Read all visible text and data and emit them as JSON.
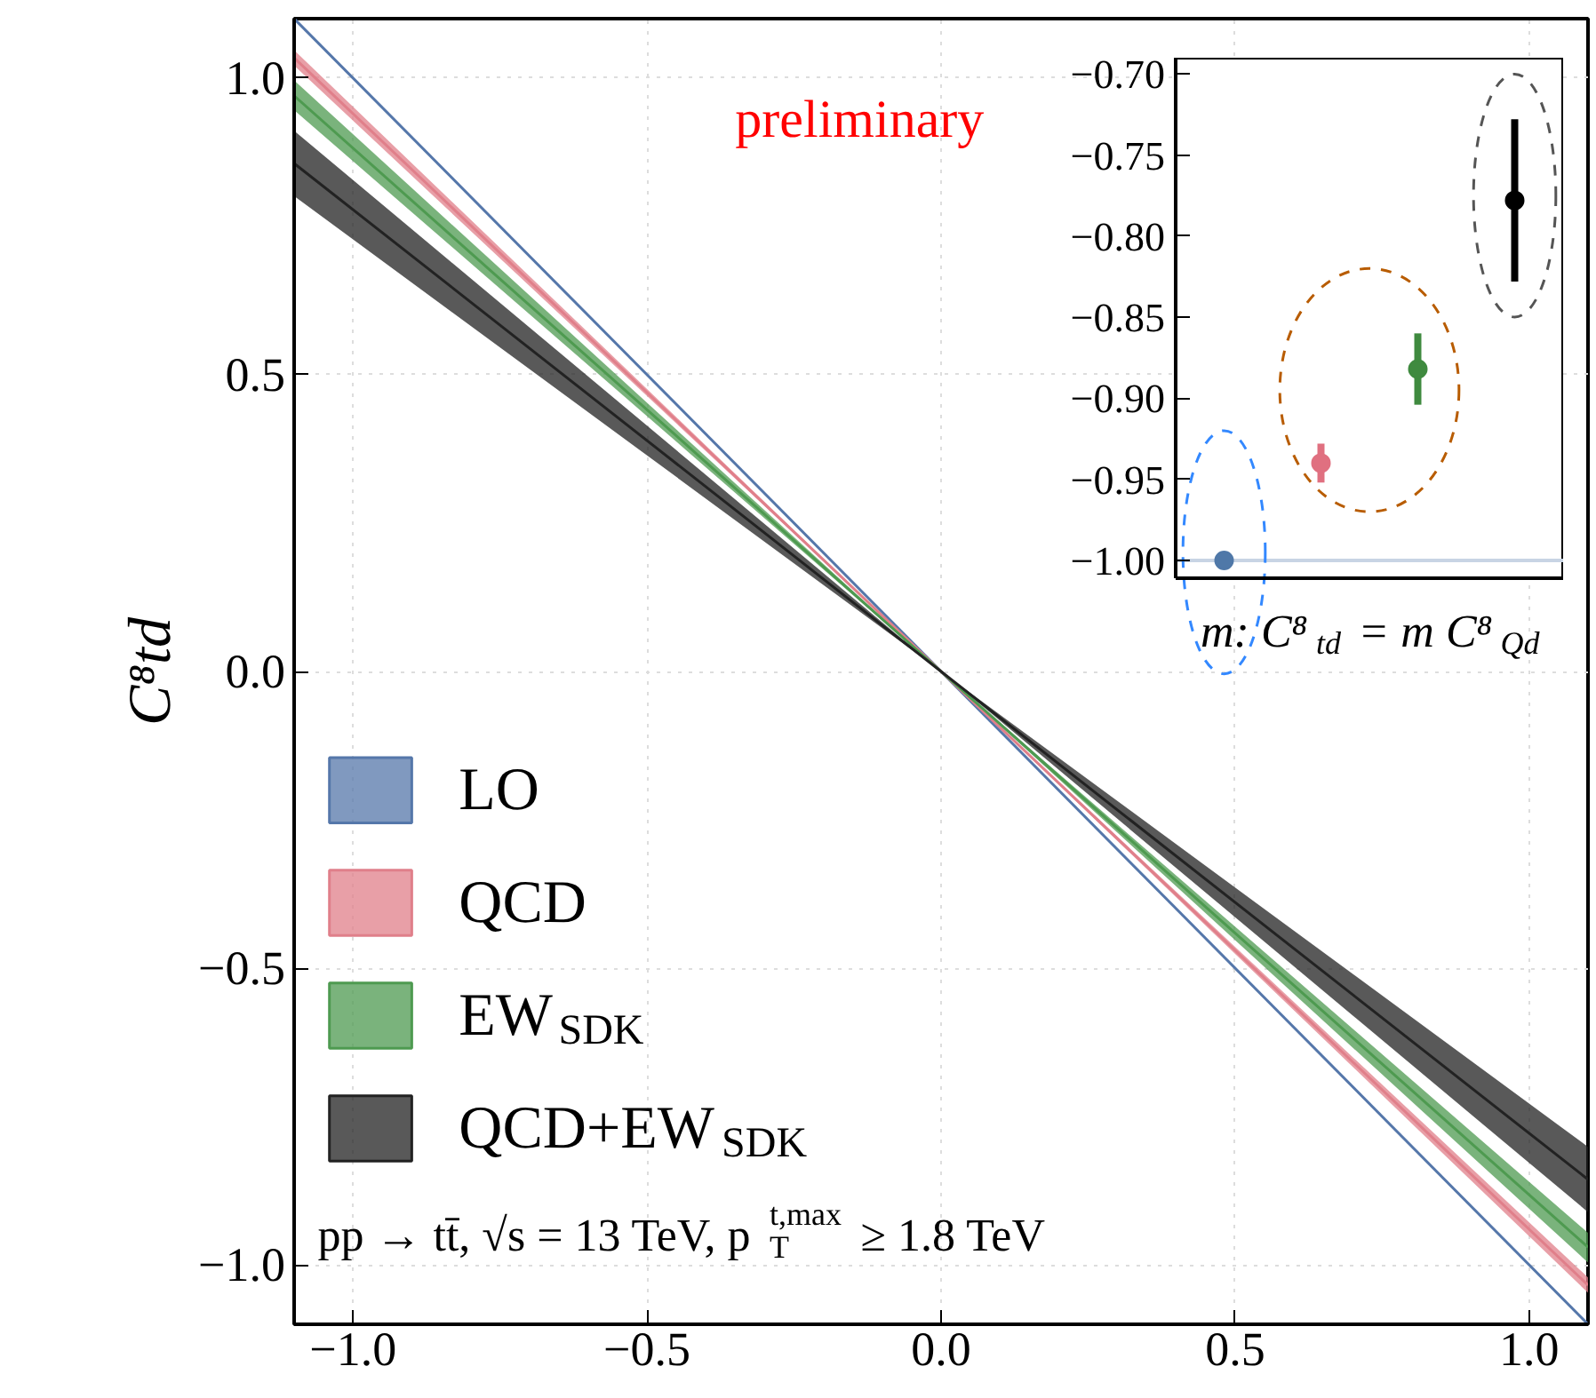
{
  "chart_data": [
    {
      "type": "line",
      "x": [
        -1.1,
        0,
        1.1
      ],
      "ylabel": "C⁸td",
      "series": [
        {
          "name": "LO",
          "color": "#5577aa",
          "values": [
            1.1,
            0,
            -1.1
          ]
        },
        {
          "name": "QCD",
          "color": "#e07f8a",
          "values": [
            1.034,
            0,
            -1.034
          ],
          "lower": [
            1.021,
            0,
            -1.047
          ],
          "upper": [
            1.047,
            0,
            -1.021
          ]
        },
        {
          "name": "EW$_{SDK}$",
          "color": "#4e9a50",
          "values": [
            0.97,
            0,
            -0.97
          ],
          "lower": [
            0.946,
            0,
            -0.996
          ],
          "upper": [
            0.996,
            0,
            -0.946
          ]
        },
        {
          "name": "QCD+EW$_{SDK}$",
          "color": "#222222",
          "values": [
            0.856,
            0,
            -0.856
          ],
          "lower": [
            0.801,
            0,
            -0.911
          ],
          "upper": [
            0.911,
            0,
            -0.801
          ]
        }
      ],
      "xlim": [
        -1.1,
        1.1
      ],
      "ylim": [
        -1.1,
        1.1
      ],
      "xticks": [
        {
          "value": -1.0,
          "label": "−1.0"
        },
        {
          "value": -0.5,
          "label": "−0.5"
        },
        {
          "value": 0.0,
          "label": "0.0"
        },
        {
          "value": 0.5,
          "label": "0.5"
        },
        {
          "value": 1.0,
          "label": "1.0"
        }
      ],
      "yticks": [
        {
          "value": -1.0,
          "label": "−1.0"
        },
        {
          "value": -0.5,
          "label": "−0.5"
        },
        {
          "value": 0.0,
          "label": "0.0"
        },
        {
          "value": 0.5,
          "label": "0.5"
        },
        {
          "value": 1.0,
          "label": "1.0"
        }
      ],
      "grid": true,
      "legend": "left",
      "line_style": "solid",
      "marker": "none",
      "annotations": [
        "preliminary",
        "pp → tt̄, √s = 13 TeV, p$_{T}$$^{t,max}$ ≥ 1.8 TeV"
      ]
    },
    {
      "type": "scatter",
      "categories": [
        null,
        null,
        null,
        null
      ],
      "xlabel": "m: C⁸$_{td}$ = m C⁸$_{Qd}$",
      "values": [
        -1.0,
        -0.94,
        -0.882,
        -0.778
      ],
      "errors": [
        null,
        0.012,
        0.022,
        0.05
      ],
      "colors": [
        "#4f78a8",
        "#e07080",
        "#3f8a3f",
        "#000000"
      ],
      "ylim": [
        -1.011,
        -0.69
      ],
      "yticks": [
        {
          "value": -1.0,
          "label": "−1.00"
        },
        {
          "value": -0.95,
          "label": "−0.95"
        },
        {
          "value": -0.9,
          "label": "−0.90"
        },
        {
          "value": -0.85,
          "label": "−0.85"
        },
        {
          "value": -0.8,
          "label": "−0.80"
        },
        {
          "value": -0.75,
          "label": "−0.75"
        },
        {
          "value": -0.7,
          "label": "−0.70"
        }
      ],
      "ref_lines": [
        {
          "axis": "y",
          "value": -1.0,
          "color": "#c8d4e4"
        }
      ],
      "marker": "circle",
      "grid": false
    }
  ]
}
